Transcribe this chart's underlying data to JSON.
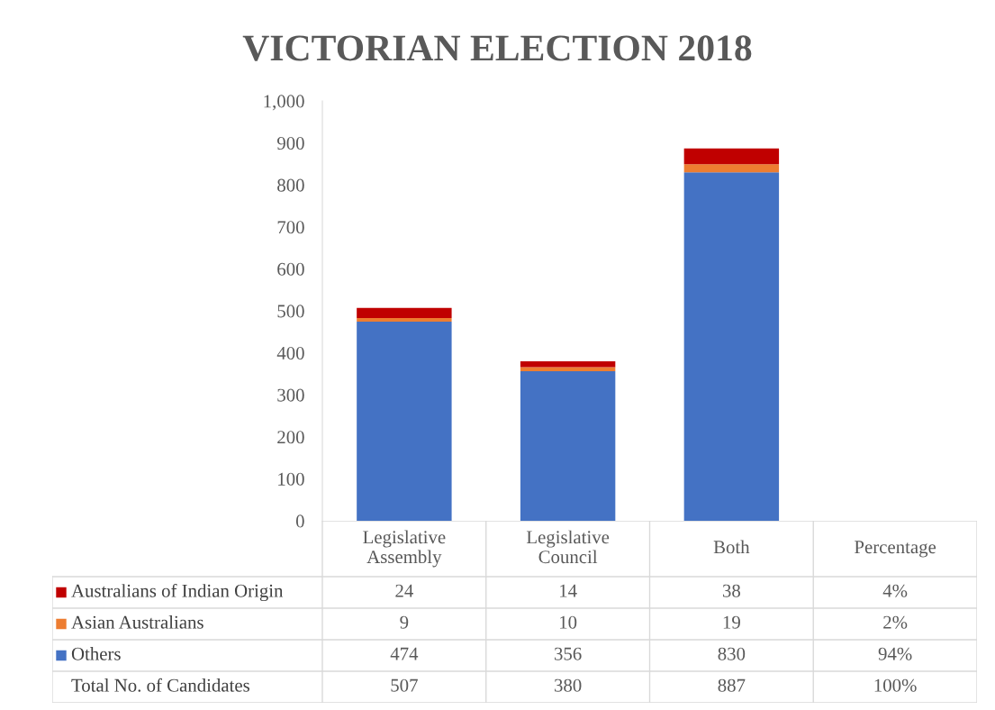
{
  "chart_data": {
    "type": "bar",
    "title": "VICTORIAN ELECTION 2018",
    "stacked": true,
    "categories": [
      "Legislative\nAssembly",
      "Legislative\nCouncil",
      "Both",
      "Percentage"
    ],
    "series": [
      {
        "name": "Others",
        "color": "#4472c4",
        "values": [
          474,
          356,
          830,
          null
        ],
        "value_labels": [
          "474",
          "356",
          "830",
          "94%"
        ]
      },
      {
        "name": "Asian Australians",
        "color": "#ed7d31",
        "values": [
          9,
          10,
          19,
          null
        ],
        "value_labels": [
          "9",
          "10",
          "19",
          "2%"
        ]
      },
      {
        "name": "Australians of Indian Origin",
        "color": "#c00000",
        "values": [
          24,
          14,
          38,
          null
        ],
        "value_labels": [
          "24",
          "14",
          "38",
          "4%"
        ]
      }
    ],
    "annotations": [
      "Total No. of Candidates",
      "507",
      "380",
      "887",
      "100%"
    ],
    "ylim": [
      0,
      1000
    ],
    "yticks": [
      0,
      100,
      200,
      300,
      400,
      500,
      600,
      700,
      800,
      900,
      {
        "value": 1000,
        "label": "1,000"
      }
    ],
    "grid": false,
    "legend": "bottom"
  }
}
